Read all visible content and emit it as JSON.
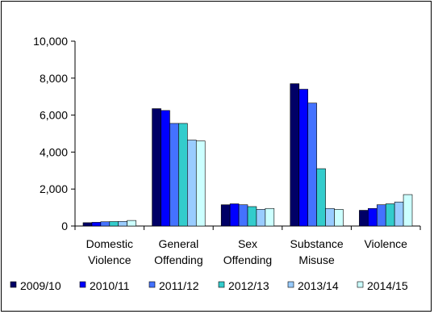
{
  "chart_data": {
    "type": "bar",
    "categories": [
      [
        "Domestic",
        "Violence"
      ],
      [
        "General",
        "Offending"
      ],
      [
        "Sex",
        "Offending"
      ],
      [
        "Substance",
        "Misuse"
      ],
      [
        "Violence"
      ]
    ],
    "series": [
      {
        "name": "2009/10",
        "color": "#000066",
        "values": [
          180,
          6350,
          1150,
          7700,
          850
        ]
      },
      {
        "name": "2010/11",
        "color": "#0000ff",
        "values": [
          200,
          6250,
          1200,
          7400,
          950
        ]
      },
      {
        "name": "2011/12",
        "color": "#4472ff",
        "values": [
          230,
          5550,
          1150,
          6650,
          1150
        ]
      },
      {
        "name": "2012/13",
        "color": "#33cccc",
        "values": [
          240,
          5550,
          1050,
          3100,
          1200
        ]
      },
      {
        "name": "2013/14",
        "color": "#99ccff",
        "values": [
          250,
          4650,
          900,
          950,
          1300
        ]
      },
      {
        "name": "2014/15",
        "color": "#ccffff",
        "values": [
          300,
          4600,
          950,
          900,
          1700
        ]
      }
    ],
    "yticks": [
      "0",
      "2,000",
      "4,000",
      "6,000",
      "8,000",
      "10,000"
    ],
    "ylim": [
      0,
      10000
    ],
    "grid": false,
    "legend": "bottom"
  }
}
